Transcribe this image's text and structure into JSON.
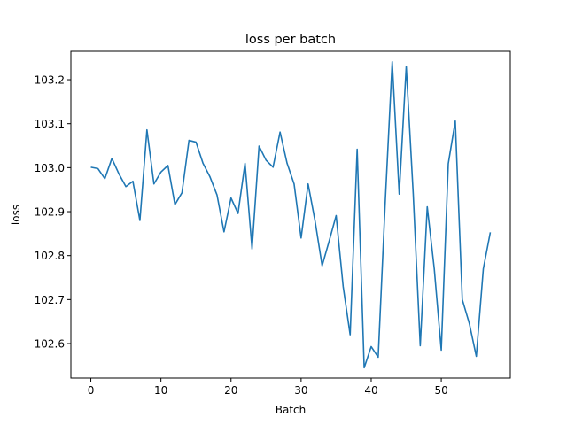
{
  "chart_data": {
    "type": "line",
    "title": "loss per batch",
    "xlabel": "Batch",
    "ylabel": "loss",
    "xlim": [
      -2.85,
      59.85
    ],
    "ylim": [
      102.5215,
      103.2645
    ],
    "xticks": [
      0,
      10,
      20,
      30,
      40,
      50
    ],
    "yticks": [
      102.6,
      102.7,
      102.8,
      102.9,
      103.0,
      103.1,
      103.2
    ],
    "ytick_labels": [
      "102.6",
      "102.7",
      "102.8",
      "102.9",
      "103.0",
      "103.1",
      "103.2"
    ],
    "grid": false,
    "legend": "none",
    "line_color": "#1f77b4",
    "series": [
      {
        "x": [
          0,
          1,
          2,
          3,
          4,
          5,
          6,
          7,
          8,
          9,
          10,
          11,
          12,
          13,
          14,
          15,
          16,
          17,
          18,
          19,
          20,
          21,
          22,
          23,
          24,
          25,
          26,
          27,
          28,
          29,
          30,
          31,
          32,
          33,
          34,
          35,
          36,
          37,
          38,
          39,
          40,
          41,
          42,
          43,
          44,
          45,
          46,
          47,
          48,
          49,
          50,
          51,
          52,
          53,
          54,
          55,
          56,
          57
        ],
        "values": [
          103.001,
          102.998,
          102.975,
          103.021,
          102.986,
          102.957,
          102.969,
          102.88,
          103.086,
          102.963,
          102.99,
          103.005,
          102.916,
          102.943,
          103.062,
          103.058,
          103.01,
          102.979,
          102.938,
          102.854,
          102.931,
          102.896,
          103.01,
          102.815,
          103.049,
          103.017,
          103.001,
          103.081,
          103.01,
          102.963,
          102.84,
          102.963,
          102.878,
          102.777,
          102.833,
          102.891,
          102.73,
          102.62,
          103.042,
          102.545,
          102.593,
          102.569,
          102.92,
          103.241,
          102.94,
          103.23,
          102.94,
          102.595,
          102.911,
          102.77,
          102.585,
          103.009,
          103.106,
          102.7,
          102.646,
          102.571,
          102.77,
          102.853
        ]
      }
    ]
  }
}
